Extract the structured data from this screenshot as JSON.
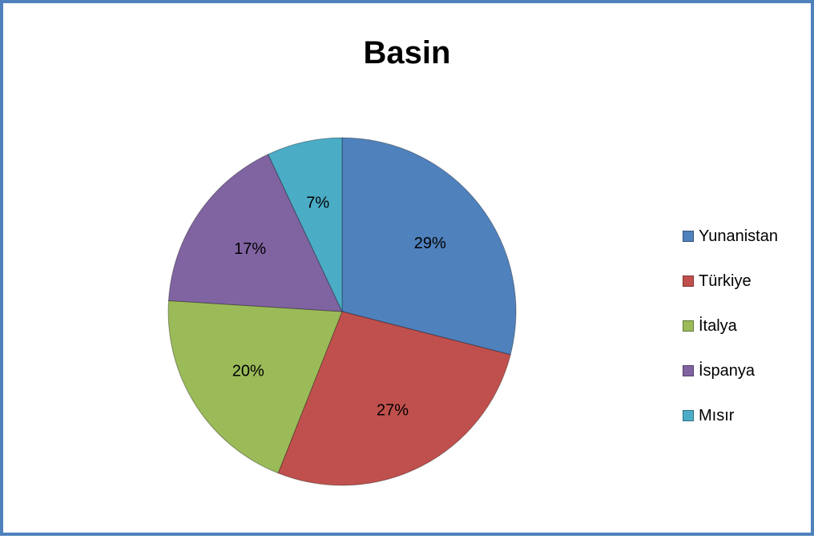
{
  "chart_data": {
    "type": "pie",
    "title": "Basin",
    "series": [
      {
        "name": "Yunanistan",
        "value": 29,
        "label": "29%",
        "color": "#4f81bd"
      },
      {
        "name": "Türkiye",
        "value": 27,
        "label": "27%",
        "color": "#c0504d"
      },
      {
        "name": "İtalya",
        "value": 20,
        "label": "20%",
        "color": "#9bbb59"
      },
      {
        "name": "İspanya",
        "value": 17,
        "label": "17%",
        "color": "#8064a2"
      },
      {
        "name": "Mısır",
        "value": 7,
        "label": "7%",
        "color": "#4bacc6"
      }
    ],
    "legend_position": "right"
  }
}
